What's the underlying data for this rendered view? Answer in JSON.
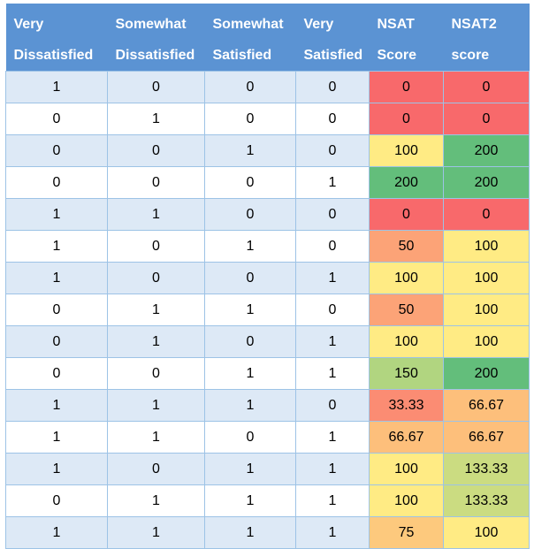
{
  "table": {
    "headers": [
      "Very Dissatisfied",
      "Somewhat Dissatisfied",
      "Somewhat Satisfied",
      "Very Satisfied",
      "NSAT Score",
      "NSAT2 score"
    ],
    "rows": [
      [
        "1",
        "0",
        "0",
        "0",
        "0",
        "0"
      ],
      [
        "0",
        "1",
        "0",
        "0",
        "0",
        "0"
      ],
      [
        "0",
        "0",
        "1",
        "0",
        "100",
        "200"
      ],
      [
        "0",
        "0",
        "0",
        "1",
        "200",
        "200"
      ],
      [
        "1",
        "1",
        "0",
        "0",
        "0",
        "0"
      ],
      [
        "1",
        "0",
        "1",
        "0",
        "50",
        "100"
      ],
      [
        "1",
        "0",
        "0",
        "1",
        "100",
        "100"
      ],
      [
        "0",
        "1",
        "1",
        "0",
        "50",
        "100"
      ],
      [
        "0",
        "1",
        "0",
        "1",
        "100",
        "100"
      ],
      [
        "0",
        "0",
        "1",
        "1",
        "150",
        "200"
      ],
      [
        "1",
        "1",
        "1",
        "0",
        "33.33",
        "66.67"
      ],
      [
        "1",
        "1",
        "0",
        "1",
        "66.67",
        "66.67"
      ],
      [
        "1",
        "0",
        "1",
        "1",
        "100",
        "133.33"
      ],
      [
        "0",
        "1",
        "1",
        "1",
        "100",
        "133.33"
      ],
      [
        "1",
        "1",
        "1",
        "1",
        "75",
        "100"
      ]
    ],
    "score_colors": [
      [
        "#f8696b",
        "#f8696b"
      ],
      [
        "#f8696b",
        "#f8696b"
      ],
      [
        "#ffeb84",
        "#63be7b"
      ],
      [
        "#63be7b",
        "#63be7b"
      ],
      [
        "#f8696b",
        "#f8696b"
      ],
      [
        "#fca377",
        "#ffeb84"
      ],
      [
        "#ffeb84",
        "#ffeb84"
      ],
      [
        "#fca377",
        "#ffeb84"
      ],
      [
        "#ffeb84",
        "#ffeb84"
      ],
      [
        "#b1d580",
        "#63be7b"
      ],
      [
        "#fb8c73",
        "#fdbf7b"
      ],
      [
        "#fdbf7b",
        "#fdbf7b"
      ],
      [
        "#ffeb84",
        "#cbdc81"
      ],
      [
        "#ffeb84",
        "#cbdc81"
      ],
      [
        "#fdc97d",
        "#ffeb84"
      ]
    ]
  },
  "colors": {
    "header_bg": "#5b93d3",
    "row_band_light": "#dde9f6",
    "row_band_white": "#ffffff",
    "grid_line": "#9dc3e6"
  }
}
